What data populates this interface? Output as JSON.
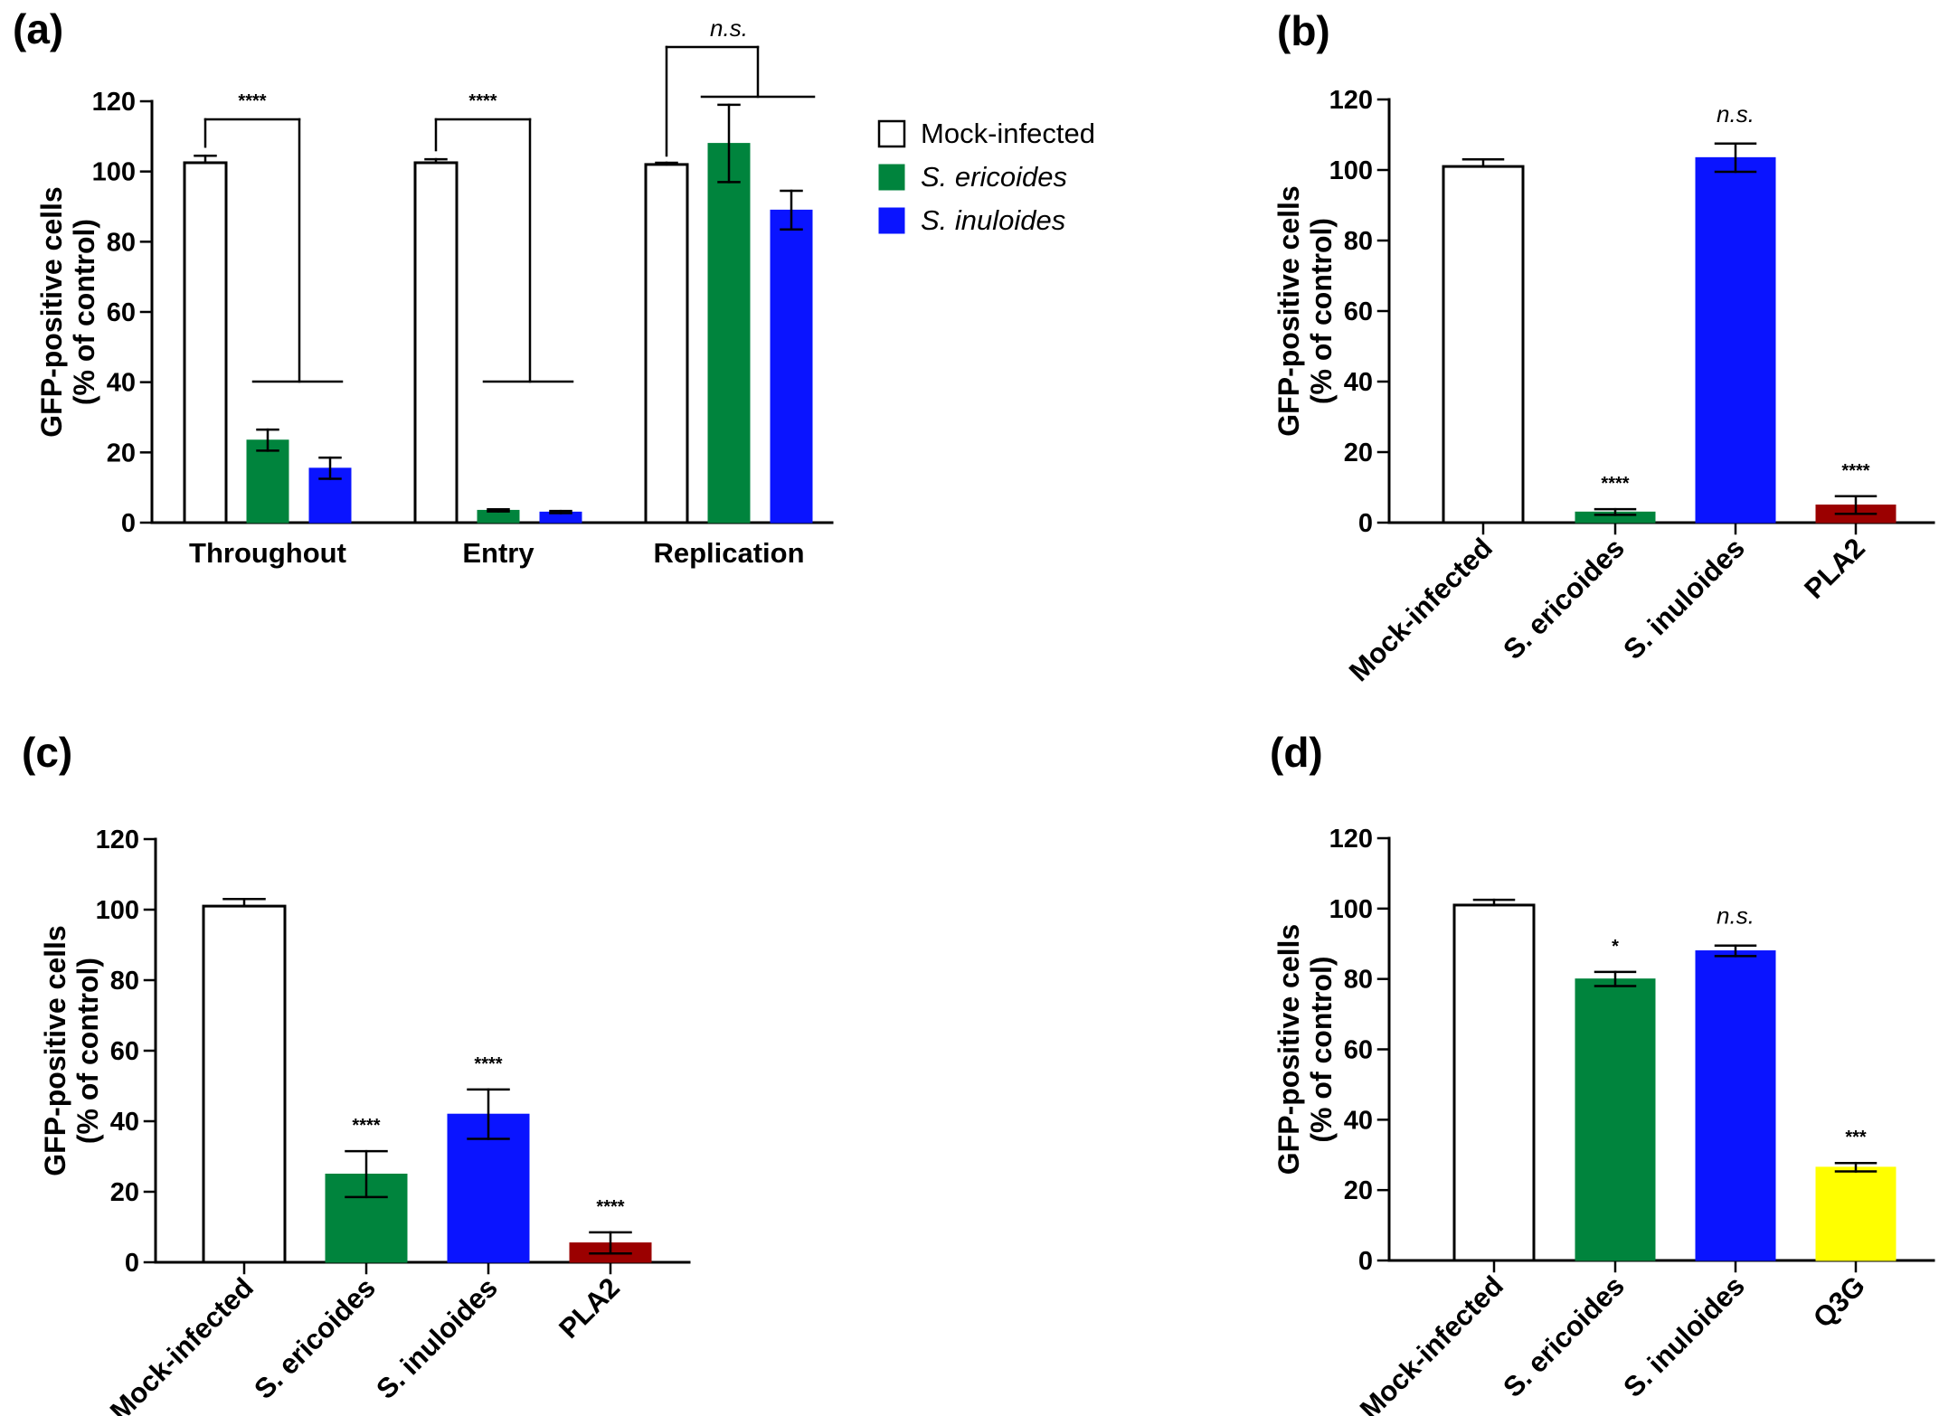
{
  "colors": {
    "mock": "#ffffff",
    "ericoides": "#00843d",
    "inuloides": "#0a14ff",
    "pla2": "#9b0000",
    "q3g": "#ffff00"
  },
  "legend": {
    "items": [
      {
        "label": "Mock-infected",
        "color_key": "mock",
        "italic": false
      },
      {
        "label": "S. ericoides",
        "color_key": "ericoides",
        "italic": true
      },
      {
        "label": "S. inuloides",
        "color_key": "inuloides",
        "italic": true
      }
    ]
  },
  "chart_data": [
    {
      "panel": "(a)",
      "type": "bar",
      "ylabel_line1": "GFP-positive cells",
      "ylabel_line2": "(% of control)",
      "ylim": [
        0,
        120
      ],
      "yticks": [
        0,
        20,
        40,
        60,
        80,
        100,
        120
      ],
      "categories": [
        "Throughout",
        "Entry",
        "Replication"
      ],
      "series": [
        {
          "name": "Mock-infected",
          "color_key": "mock",
          "values": [
            102.5,
            102.5,
            102
          ],
          "errors": [
            2,
            1,
            0.5
          ]
        },
        {
          "name": "S. ericoides",
          "color_key": "ericoides",
          "values": [
            23.5,
            3.5,
            108
          ],
          "errors": [
            3,
            0.3,
            11
          ]
        },
        {
          "name": "S. inuloides",
          "color_key": "inuloides",
          "values": [
            15.5,
            3,
            89
          ],
          "errors": [
            3,
            0.3,
            5.5
          ]
        }
      ],
      "annotations": [
        {
          "text": "****",
          "category": 0
        },
        {
          "text": "****",
          "category": 1
        },
        {
          "text": "n.s.",
          "category": 2
        }
      ]
    },
    {
      "panel": "(b)",
      "type": "bar",
      "ylabel_line1": "GFP-positive cells",
      "ylabel_line2": "(% of control)",
      "ylim": [
        0,
        120
      ],
      "yticks": [
        0,
        20,
        40,
        60,
        80,
        100,
        120
      ],
      "categories": [
        "Mock-infected",
        "S. ericoides",
        "S. inuloides",
        "PLA2"
      ],
      "colors": [
        "mock",
        "ericoides",
        "inuloides",
        "pla2"
      ],
      "values": [
        101,
        3,
        103.5,
        5
      ],
      "errors": [
        2,
        0.8,
        4,
        2.5
      ],
      "annotations": [
        "",
        "****",
        "n.s.",
        "****"
      ]
    },
    {
      "panel": "(c)",
      "type": "bar",
      "ylabel_line1": "GFP-positive cells",
      "ylabel_line2": "(% of control)",
      "ylim": [
        0,
        120
      ],
      "yticks": [
        0,
        20,
        40,
        60,
        80,
        100,
        120
      ],
      "categories": [
        "Mock-infected",
        "S. ericoides",
        "S. inuloides",
        "PLA2"
      ],
      "colors": [
        "mock",
        "ericoides",
        "inuloides",
        "pla2"
      ],
      "values": [
        101,
        25,
        42,
        5.5
      ],
      "errors": [
        2,
        6.5,
        7,
        3
      ],
      "annotations": [
        "",
        "****",
        "****",
        "****"
      ]
    },
    {
      "panel": "(d)",
      "type": "bar",
      "ylabel_line1": "GFP-positive cells",
      "ylabel_line2": "(% of control)",
      "ylim": [
        0,
        120
      ],
      "yticks": [
        0,
        20,
        40,
        60,
        80,
        100,
        120
      ],
      "categories": [
        "Mock-infected",
        "S. ericoides",
        "S. inuloides",
        "Q3G"
      ],
      "colors": [
        "mock",
        "ericoides",
        "inuloides",
        "q3g"
      ],
      "values": [
        101,
        80,
        88,
        26.5
      ],
      "errors": [
        1.5,
        2,
        1.5,
        1.2
      ],
      "annotations": [
        "",
        "*",
        "n.s.",
        "***"
      ]
    }
  ]
}
